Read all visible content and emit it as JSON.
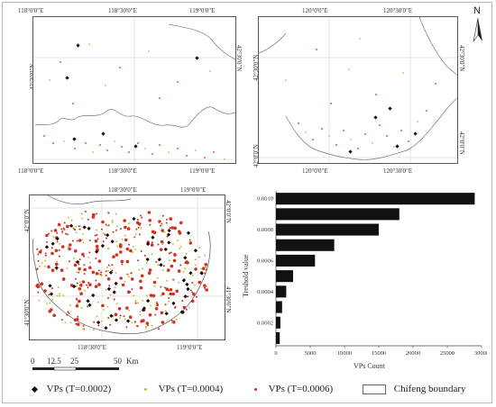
{
  "north_arrow": {
    "letter": "N"
  },
  "map_tl": {
    "top_labels": [
      "118°0'0\"E",
      "118°30'0\"E",
      "119°0'0\"E"
    ],
    "bottom_labels": [
      "118°0'0\"E",
      "118°30'0\"E",
      "119°0'0\"E"
    ],
    "left_labels": [
      "42°30'0\"N"
    ],
    "right_labels": [
      "42°30'0\"N"
    ]
  },
  "map_tr": {
    "top_labels": [
      "120°0'0\"E",
      "120°30'0\"E"
    ],
    "bottom_labels": [
      "120°0'0\"E",
      "120°30'0\"E"
    ],
    "left_labels": [
      "42°30'0\"N",
      "42°0'0\"N"
    ],
    "right_labels": [
      "42°30'0\"N",
      "42°0'0\"N"
    ]
  },
  "map_bl": {
    "top_labels": [
      "118°30'0\"E",
      "119°0'0\"E"
    ],
    "bottom_labels": [
      "118°30'0\"E",
      "119°0'0\"E"
    ],
    "left_labels": [
      "42°0'0\"N",
      "41°30'0\"N"
    ],
    "right_labels": [
      "42°0'0\"N",
      "41°30'0\"N"
    ]
  },
  "scale_bar": {
    "ticks": [
      "0",
      "12.5",
      "25",
      "50"
    ],
    "unit": "Km"
  },
  "legend": {
    "items": [
      {
        "label": "VPs (T=0.0002)",
        "color": "#1a0a0a",
        "symbol": "diamond"
      },
      {
        "label": "VPs (T=0.0004)",
        "color": "#b8c83a",
        "symbol": "dot"
      },
      {
        "label": "VPs (T=0.0006)",
        "color": "#d23020",
        "symbol": "dot"
      },
      {
        "label": "Chifeng boundary",
        "color": "#666666",
        "symbol": "box"
      }
    ]
  },
  "chart_data": {
    "type": "bar",
    "orientation": "horizontal",
    "categories": [
      "0.0010",
      "",
      "0.0008",
      "",
      "0.0006",
      "",
      "0.0004",
      "",
      "0.0002",
      ""
    ],
    "values": [
      29000,
      18000,
      15000,
      8500,
      5700,
      2500,
      1500,
      900,
      650,
      550
    ],
    "xlabel": "VPs Count",
    "ylabel": "Treshold value",
    "xlim": [
      0,
      30000
    ],
    "xticks": [
      "0",
      "5000",
      "10000",
      "15000",
      "20000",
      "25000",
      "30000"
    ],
    "yticks": [
      "0.0010",
      "0.0008",
      "0.0006",
      "0.0004",
      "0.0002"
    ],
    "bar_color": "#111111",
    "grid": false
  }
}
